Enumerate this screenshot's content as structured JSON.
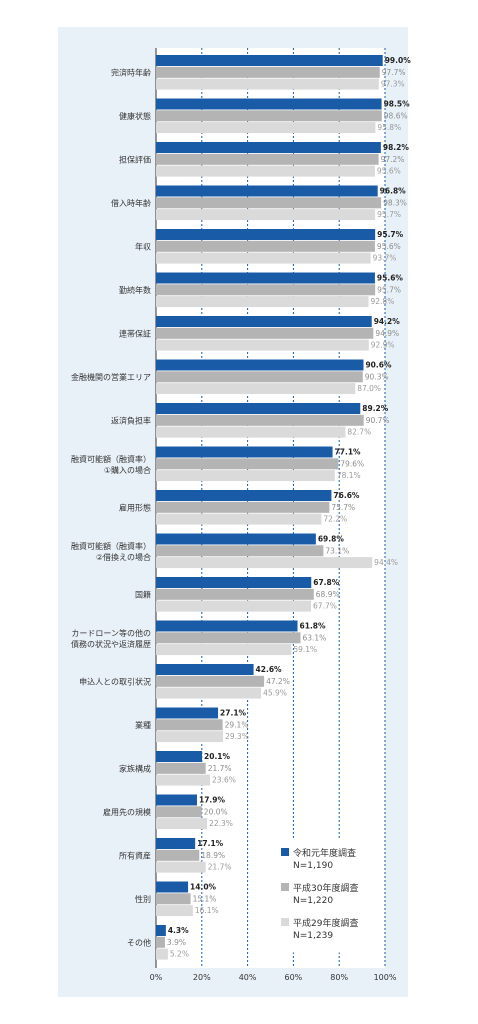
{
  "colors": {
    "series_2019": "#1a5ba8",
    "series_2018": "#b4b4b4",
    "series_2017": "#dadada",
    "panel_bg": "#e9f1f8",
    "grid": "#1a5ba8"
  },
  "chart_data": {
    "type": "bar",
    "orientation": "horizontal",
    "xlim": [
      0,
      100
    ],
    "grid": "vertical dotted lines at 20% intervals",
    "legend_position": "bottom-right",
    "x_tick_labels": [
      "0%",
      "20%",
      "40%",
      "60%",
      "80%",
      "100%"
    ],
    "categories": [
      [
        "完済時年齢"
      ],
      [
        "健康状態"
      ],
      [
        "担保評価"
      ],
      [
        "借入時年齢"
      ],
      [
        "年収"
      ],
      [
        "勤続年数"
      ],
      [
        "連帯保証"
      ],
      [
        "金融機関の営業エリア"
      ],
      [
        "返済負担率"
      ],
      [
        "融資可能額（融資率）",
        "①購入の場合"
      ],
      [
        "雇用形態"
      ],
      [
        "融資可能額（融資率）",
        "②借換えの場合"
      ],
      [
        "国籍"
      ],
      [
        "カードローン等の他の",
        "債務の状況や返済履歴"
      ],
      [
        "申込人との取引状況"
      ],
      [
        "業種"
      ],
      [
        "家族構成"
      ],
      [
        "雇用先の規模"
      ],
      [
        "所有資産"
      ],
      [
        "性別"
      ],
      [
        "その他"
      ]
    ],
    "series": [
      {
        "name": "令和元年度調査",
        "n": "N=1,190",
        "values": [
          99.0,
          98.5,
          98.2,
          96.8,
          95.7,
          95.6,
          94.2,
          90.6,
          89.2,
          77.1,
          76.6,
          69.8,
          67.8,
          61.8,
          42.6,
          27.1,
          20.1,
          17.9,
          17.1,
          14.0,
          4.3
        ],
        "labels": [
          "99.0%",
          "98.5%",
          "98.2%",
          "96.8%",
          "95.7%",
          "95.6%",
          "94.2%",
          "90.6%",
          "89.2%",
          "77.1%",
          "76.6%",
          "69.8%",
          "67.8%",
          "61.8%",
          "42.6%",
          "27.1%",
          "20.1%",
          "17.9%",
          "17.1%",
          "14.0%",
          "4.3%"
        ]
      },
      {
        "name": "平成30年度調査",
        "n": "N=1,220",
        "values": [
          97.7,
          98.6,
          97.2,
          98.3,
          95.6,
          95.7,
          94.9,
          90.3,
          90.7,
          79.6,
          75.7,
          73.1,
          68.9,
          63.1,
          47.2,
          29.1,
          21.7,
          20.0,
          18.9,
          15.1,
          3.9
        ],
        "labels": [
          "97.7%",
          "98.6%",
          "97.2%",
          "98.3%",
          "95.6%",
          "95.7%",
          "94.9%",
          "90.3%",
          "90.7%",
          "79.6%",
          "75.7%",
          "73.1%",
          "68.9%",
          "63.1%",
          "47.2%",
          "29.1%",
          "21.7%",
          "20.0%",
          "18.9%",
          "15.1%",
          "3.9%"
        ]
      },
      {
        "name": "平成29年度調査",
        "n": "N=1,239",
        "values": [
          97.3,
          95.8,
          95.6,
          95.7,
          93.7,
          92.8,
          92.9,
          87.0,
          82.7,
          78.1,
          72.2,
          94.4,
          67.7,
          59.1,
          45.9,
          29.3,
          23.6,
          22.3,
          21.7,
          16.1,
          5.2
        ],
        "labels": [
          "97.3%",
          "95.8%",
          "95.6%",
          "95.7%",
          "93.7%",
          "92.8%",
          "92.9%",
          "87.0%",
          "82.7%",
          "78.1%",
          "72.2%",
          "94.4%",
          "67.7%",
          "59.1%",
          "45.9%",
          "29.3%",
          "23.6%",
          "22.3%",
          "21.7%",
          "16.1%",
          "5.2%"
        ]
      }
    ]
  }
}
